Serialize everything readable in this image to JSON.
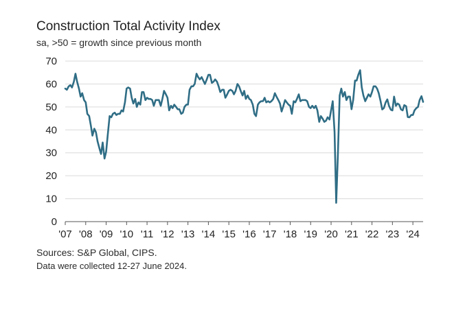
{
  "chart_data": {
    "type": "line",
    "title": "Construction Total Activity Index",
    "subtitle": "sa, >50 = growth since previous month",
    "xlabel": "",
    "ylabel": "",
    "ylim": [
      0,
      70
    ],
    "yticks": [
      0,
      10,
      20,
      30,
      40,
      50,
      60,
      70
    ],
    "xlim": [
      2007.0,
      2024.5
    ],
    "xticks": [
      {
        "x": 2007,
        "label": "'07"
      },
      {
        "x": 2008,
        "label": "'08"
      },
      {
        "x": 2009,
        "label": "'09"
      },
      {
        "x": 2010,
        "label": "'10"
      },
      {
        "x": 2011,
        "label": "'11"
      },
      {
        "x": 2012,
        "label": "'12"
      },
      {
        "x": 2013,
        "label": "'13"
      },
      {
        "x": 2014,
        "label": "'14"
      },
      {
        "x": 2015,
        "label": "'15"
      },
      {
        "x": 2016,
        "label": "'16"
      },
      {
        "x": 2017,
        "label": "'17"
      },
      {
        "x": 2018,
        "label": "'18"
      },
      {
        "x": 2019,
        "label": "'19"
      },
      {
        "x": 2020,
        "label": "'20"
      },
      {
        "x": 2021,
        "label": "'21"
      },
      {
        "x": 2022,
        "label": "'22"
      },
      {
        "x": 2023,
        "label": "'23"
      },
      {
        "x": 2024,
        "label": "'24"
      }
    ],
    "gridlines": true,
    "color": "#2f6d85",
    "series": [
      {
        "name": "Construction Total Activity Index",
        "points": [
          [
            2007.0,
            58
          ],
          [
            2007.08,
            57.5
          ],
          [
            2007.17,
            59
          ],
          [
            2007.25,
            59.5
          ],
          [
            2007.33,
            58.5
          ],
          [
            2007.42,
            61
          ],
          [
            2007.5,
            64.5
          ],
          [
            2007.58,
            61
          ],
          [
            2007.67,
            58
          ],
          [
            2007.75,
            54.5
          ],
          [
            2007.83,
            56
          ],
          [
            2007.92,
            53
          ],
          [
            2008.0,
            52
          ],
          [
            2008.08,
            47
          ],
          [
            2008.17,
            46
          ],
          [
            2008.25,
            42
          ],
          [
            2008.33,
            37.5
          ],
          [
            2008.42,
            40.5
          ],
          [
            2008.5,
            39
          ],
          [
            2008.58,
            35
          ],
          [
            2008.67,
            32
          ],
          [
            2008.75,
            29.5
          ],
          [
            2008.83,
            34.5
          ],
          [
            2008.92,
            27.5
          ],
          [
            2009.0,
            30.5
          ],
          [
            2009.08,
            38
          ],
          [
            2009.17,
            46
          ],
          [
            2009.25,
            45.5
          ],
          [
            2009.33,
            47
          ],
          [
            2009.42,
            47.5
          ],
          [
            2009.5,
            46.5
          ],
          [
            2009.58,
            47
          ],
          [
            2009.67,
            47
          ],
          [
            2009.75,
            48.5
          ],
          [
            2009.83,
            48
          ],
          [
            2009.92,
            52
          ],
          [
            2010.0,
            58
          ],
          [
            2010.08,
            58.5
          ],
          [
            2010.17,
            58
          ],
          [
            2010.25,
            54
          ],
          [
            2010.33,
            51.5
          ],
          [
            2010.42,
            53.5
          ],
          [
            2010.5,
            50
          ],
          [
            2010.58,
            52
          ],
          [
            2010.67,
            51
          ],
          [
            2010.75,
            56.5
          ],
          [
            2010.83,
            56.5
          ],
          [
            2010.92,
            53
          ],
          [
            2011.0,
            54
          ],
          [
            2011.08,
            53.5
          ],
          [
            2011.17,
            53.5
          ],
          [
            2011.25,
            53
          ],
          [
            2011.33,
            50.5
          ],
          [
            2011.42,
            53
          ],
          [
            2011.5,
            53
          ],
          [
            2011.58,
            53
          ],
          [
            2011.67,
            50.5
          ],
          [
            2011.75,
            53.5
          ],
          [
            2011.83,
            57
          ],
          [
            2011.92,
            55.5
          ],
          [
            2012.0,
            54
          ],
          [
            2012.08,
            48.5
          ],
          [
            2012.17,
            50.5
          ],
          [
            2012.25,
            49.5
          ],
          [
            2012.33,
            51
          ],
          [
            2012.42,
            50
          ],
          [
            2012.5,
            49
          ],
          [
            2012.58,
            49
          ],
          [
            2012.67,
            47
          ],
          [
            2012.75,
            47.5
          ],
          [
            2012.83,
            50
          ],
          [
            2012.92,
            51
          ],
          [
            2013.0,
            51
          ],
          [
            2013.08,
            57.5
          ],
          [
            2013.17,
            59
          ],
          [
            2013.25,
            59
          ],
          [
            2013.33,
            60
          ],
          [
            2013.42,
            64.5
          ],
          [
            2013.5,
            63
          ],
          [
            2013.58,
            62
          ],
          [
            2013.67,
            63
          ],
          [
            2013.75,
            61.5
          ],
          [
            2013.83,
            60
          ],
          [
            2013.92,
            62
          ],
          [
            2014.0,
            64
          ],
          [
            2014.08,
            64
          ],
          [
            2014.17,
            60.5
          ],
          [
            2014.25,
            61
          ],
          [
            2014.33,
            62
          ],
          [
            2014.42,
            61
          ],
          [
            2014.5,
            59
          ],
          [
            2014.58,
            56.5
          ],
          [
            2014.67,
            57.5
          ],
          [
            2014.75,
            57.5
          ],
          [
            2014.83,
            54
          ],
          [
            2014.92,
            55.5
          ],
          [
            2015.0,
            57
          ],
          [
            2015.08,
            57.5
          ],
          [
            2015.17,
            57
          ],
          [
            2015.25,
            55.5
          ],
          [
            2015.33,
            57
          ],
          [
            2015.42,
            60
          ],
          [
            2015.5,
            59
          ],
          [
            2015.58,
            57
          ],
          [
            2015.67,
            55
          ],
          [
            2015.75,
            57
          ],
          [
            2015.83,
            53.5
          ],
          [
            2015.92,
            55
          ],
          [
            2016.0,
            53.5
          ],
          [
            2016.08,
            53
          ],
          [
            2016.17,
            51
          ],
          [
            2016.25,
            47
          ],
          [
            2016.33,
            46
          ],
          [
            2016.42,
            51
          ],
          [
            2016.5,
            52
          ],
          [
            2016.58,
            52.5
          ],
          [
            2016.67,
            52.5
          ],
          [
            2016.75,
            54
          ],
          [
            2016.83,
            52
          ],
          [
            2016.92,
            52.5
          ],
          [
            2017.0,
            52
          ],
          [
            2017.08,
            52.5
          ],
          [
            2017.17,
            53.5
          ],
          [
            2017.25,
            56
          ],
          [
            2017.33,
            54.5
          ],
          [
            2017.42,
            53
          ],
          [
            2017.5,
            51.5
          ],
          [
            2017.58,
            48
          ],
          [
            2017.67,
            50.5
          ],
          [
            2017.75,
            53
          ],
          [
            2017.83,
            52
          ],
          [
            2017.92,
            51
          ],
          [
            2018.0,
            50.5
          ],
          [
            2018.08,
            47
          ],
          [
            2018.17,
            52.5
          ],
          [
            2018.25,
            52
          ],
          [
            2018.33,
            53.5
          ],
          [
            2018.42,
            55.5
          ],
          [
            2018.5,
            52.5
          ],
          [
            2018.58,
            53
          ],
          [
            2018.67,
            53
          ],
          [
            2018.75,
            53
          ],
          [
            2018.83,
            52.5
          ],
          [
            2018.92,
            50
          ],
          [
            2019.0,
            49.5
          ],
          [
            2019.08,
            50.5
          ],
          [
            2019.17,
            49.5
          ],
          [
            2019.25,
            50.5
          ],
          [
            2019.33,
            48.5
          ],
          [
            2019.42,
            43.5
          ],
          [
            2019.5,
            46
          ],
          [
            2019.58,
            45
          ],
          [
            2019.67,
            43.5
          ],
          [
            2019.75,
            44
          ],
          [
            2019.83,
            45.5
          ],
          [
            2019.92,
            44.5
          ],
          [
            2020.0,
            48.5
          ],
          [
            2020.08,
            52.5
          ],
          [
            2020.17,
            39
          ],
          [
            2020.25,
            8.2
          ],
          [
            2020.33,
            28.5
          ],
          [
            2020.42,
            55
          ],
          [
            2020.5,
            58
          ],
          [
            2020.58,
            54.5
          ],
          [
            2020.67,
            56.5
          ],
          [
            2020.75,
            53
          ],
          [
            2020.83,
            54.5
          ],
          [
            2020.92,
            54.5
          ],
          [
            2021.0,
            49
          ],
          [
            2021.08,
            53
          ],
          [
            2021.17,
            61.5
          ],
          [
            2021.25,
            61.5
          ],
          [
            2021.33,
            64
          ],
          [
            2021.42,
            66
          ],
          [
            2021.5,
            58.5
          ],
          [
            2021.58,
            55
          ],
          [
            2021.67,
            52.5
          ],
          [
            2021.75,
            54
          ],
          [
            2021.83,
            55.5
          ],
          [
            2021.92,
            54.5
          ],
          [
            2022.0,
            56.5
          ],
          [
            2022.08,
            59
          ],
          [
            2022.17,
            59
          ],
          [
            2022.25,
            58
          ],
          [
            2022.33,
            56
          ],
          [
            2022.42,
            52.5
          ],
          [
            2022.5,
            48.9
          ],
          [
            2022.58,
            49.5
          ],
          [
            2022.67,
            52
          ],
          [
            2022.75,
            53.3
          ],
          [
            2022.83,
            50.5
          ],
          [
            2022.92,
            48.8
          ],
          [
            2023.0,
            48.5
          ],
          [
            2023.08,
            54.5
          ],
          [
            2023.17,
            50.5
          ],
          [
            2023.25,
            51.5
          ],
          [
            2023.33,
            51
          ],
          [
            2023.42,
            48.9
          ],
          [
            2023.5,
            48.5
          ],
          [
            2023.58,
            50.8
          ],
          [
            2023.67,
            50.3
          ],
          [
            2023.75,
            45.6
          ],
          [
            2023.83,
            45.5
          ],
          [
            2023.92,
            46.5
          ],
          [
            2024.0,
            46.5
          ],
          [
            2024.08,
            48.5
          ],
          [
            2024.17,
            49.5
          ],
          [
            2024.25,
            50
          ],
          [
            2024.33,
            53
          ],
          [
            2024.42,
            54.7
          ],
          [
            2024.5,
            52.2
          ]
        ]
      }
    ],
    "sources": "Sources: S&P Global, CIPS.",
    "note": "Data were collected 12-27 June 2024."
  },
  "colors": {
    "line": "#2f6d85",
    "grid": "#d9d9d9",
    "axis": "#555555"
  }
}
